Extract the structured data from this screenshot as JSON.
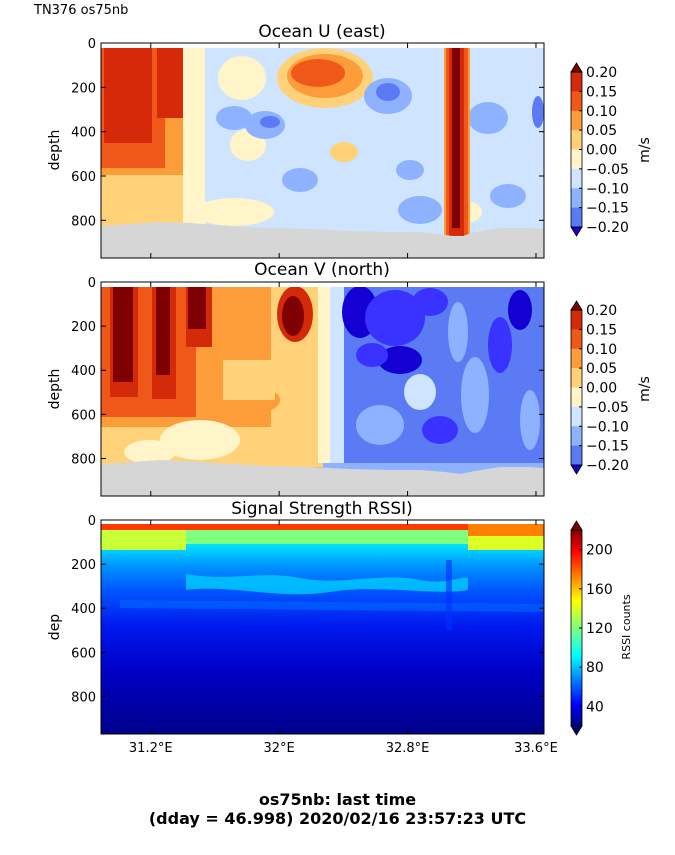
{
  "header": "TN376 os75nb",
  "footer": {
    "line1": "os75nb: last time",
    "line2": "(dday = 46.998) 2020/02/16 23:57:23 UTC"
  },
  "colors": {
    "seafloor": "#d6d6d6",
    "velocity_levels": [
      "#1500d4",
      "#3a32ff",
      "#5b7bf5",
      "#8eb2ff",
      "#cfe4ff",
      "#fff5c8",
      "#ffd27a",
      "#fd9d3a",
      "#f0581a",
      "#d42a0a",
      "#7f0000"
    ]
  },
  "chart_data": [
    {
      "type": "heatmap",
      "title": "Ocean U (east)",
      "ylabel": "depth",
      "xlabel": "",
      "x_ticks": [
        "31.2°E",
        "32°E",
        "32.8°E",
        "33.6°E"
      ],
      "x_tick_values": [
        31.2,
        32.0,
        32.8,
        33.6
      ],
      "xlim": [
        30.89,
        33.65
      ],
      "y_ticks": [
        "0",
        "200",
        "400",
        "600",
        "800"
      ],
      "y_tick_values": [
        0,
        200,
        400,
        600,
        800
      ],
      "ylim": [
        970,
        0
      ],
      "colorbar": {
        "label": "m/s",
        "tick_labels": [
          "0.20",
          "0.15",
          "0.10",
          "0.05",
          "0.00",
          "−0.05",
          "−0.10",
          "−0.15",
          "−0.20"
        ],
        "tick_values": [
          0.2,
          0.15,
          0.1,
          0.05,
          0.0,
          -0.05,
          -0.1,
          -0.15,
          -0.2
        ],
        "vmin": -0.2,
        "vmax": 0.2
      },
      "x": [
        31.0,
        31.25,
        31.45,
        31.75,
        32.05,
        32.25,
        32.5,
        32.8,
        33.0,
        33.1,
        33.25,
        33.6
      ],
      "values": [
        0.16,
        0.15,
        0.04,
        0.0,
        -0.05,
        0.1,
        -0.02,
        -0.03,
        0.19,
        -0.04,
        -0.06,
        -0.06
      ],
      "seafloor_depth": [
        830,
        800,
        805,
        820,
        830,
        835,
        845,
        850,
        880,
        860,
        845,
        845
      ]
    },
    {
      "type": "heatmap",
      "title": "Ocean V (north)",
      "ylabel": "depth",
      "xlabel": "",
      "x_ticks": [
        "31.2°E",
        "32°E",
        "32.8°E",
        "33.6°E"
      ],
      "x_tick_values": [
        31.2,
        32.0,
        32.8,
        33.6
      ],
      "xlim": [
        30.89,
        33.65
      ],
      "y_ticks": [
        "0",
        "200",
        "400",
        "600",
        "800"
      ],
      "y_tick_values": [
        0,
        200,
        400,
        600,
        800
      ],
      "ylim": [
        970,
        0
      ],
      "colorbar": {
        "label": "m/s",
        "tick_labels": [
          "0.20",
          "0.15",
          "0.10",
          "0.05",
          "0.00",
          "−0.05",
          "−0.10",
          "−0.15",
          "−0.20"
        ],
        "tick_values": [
          0.2,
          0.15,
          0.1,
          0.05,
          0.0,
          -0.05,
          -0.1,
          -0.15,
          -0.2
        ],
        "vmin": -0.2,
        "vmax": 0.2
      },
      "x": [
        31.0,
        31.25,
        31.45,
        31.75,
        32.0,
        32.2,
        32.4,
        32.7,
        33.0,
        33.3,
        33.6
      ],
      "values": [
        0.2,
        0.12,
        0.08,
        0.12,
        0.14,
        0.1,
        -0.15,
        -0.12,
        -0.08,
        -0.1,
        -0.1
      ],
      "seafloor_depth": [
        830,
        800,
        805,
        820,
        830,
        835,
        845,
        850,
        880,
        860,
        845
      ]
    },
    {
      "type": "heatmap",
      "title": "Signal Strength RSSI)",
      "ylabel": "dep",
      "xlabel": "",
      "x_ticks": [
        "31.2°E",
        "32°E",
        "32.8°E",
        "33.6°E"
      ],
      "x_tick_values": [
        31.2,
        32.0,
        32.8,
        33.6
      ],
      "xlim": [
        30.89,
        33.65
      ],
      "y_ticks": [
        "0",
        "200",
        "400",
        "600",
        "800"
      ],
      "y_tick_values": [
        0,
        200,
        400,
        600,
        800
      ],
      "ylim": [
        970,
        0
      ],
      "colorbar": {
        "label": "RSSI counts",
        "tick_labels": [
          "200",
          "160",
          "120",
          "80",
          "40"
        ],
        "tick_values": [
          200,
          160,
          120,
          80,
          40
        ],
        "vmin": 20,
        "vmax": 220
      },
      "depth": [
        30,
        100,
        200,
        300,
        400,
        500,
        600,
        700,
        800,
        900
      ],
      "values": [
        200,
        130,
        110,
        95,
        75,
        60,
        50,
        40,
        30,
        20
      ]
    }
  ]
}
